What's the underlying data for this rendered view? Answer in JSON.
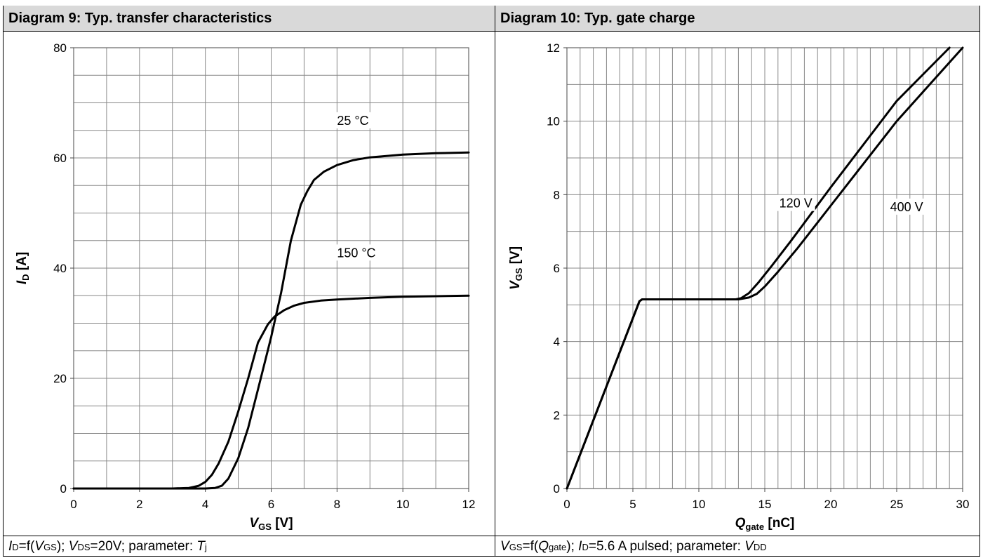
{
  "panels": [
    {
      "header": "Diagram 9: Typ. transfer characteristics",
      "footer": {
        "p1": "I",
        "p1s": "D",
        "p2": "=f(",
        "p3": "V",
        "p3s": "GS",
        "p4": "); ",
        "p5": "V",
        "p5s": "DS",
        "p6": "=20V; parameter: ",
        "p7": "T",
        "p7s": "j"
      }
    },
    {
      "header": "Diagram 10: Typ. gate charge",
      "footer": {
        "p1": "V",
        "p1s": "GS",
        "p2": "=f(",
        "p3": "Q",
        "p3s": "gate",
        "p4": "); ",
        "p5": "I",
        "p5s": "D",
        "p6": "=5.6 A pulsed; parameter: ",
        "p7": "V",
        "p7s": "DD"
      }
    }
  ],
  "chart_data": [
    {
      "type": "line",
      "xlim": [
        0,
        12
      ],
      "ylim": [
        0,
        80
      ],
      "xticks": [
        0,
        2,
        4,
        6,
        8,
        10,
        12
      ],
      "yticks": [
        0,
        20,
        40,
        60,
        80
      ],
      "x_minor_step": 1,
      "y_minor_step": 5,
      "grid": true,
      "xlabel": {
        "main": "V",
        "sub": "GS",
        "unit": " [V]"
      },
      "ylabel": {
        "main": "I",
        "sub": "D",
        "unit": " [A]"
      },
      "series": [
        {
          "name": "25 °C",
          "x": [
            0,
            3.5,
            4.0,
            4.3,
            4.5,
            4.7,
            5.0,
            5.3,
            5.6,
            6.0,
            6.3,
            6.6,
            6.9,
            7.1,
            7.3,
            7.6,
            8.0,
            8.5,
            9.0,
            10.0,
            11.0,
            12.0
          ],
          "y": [
            0,
            0,
            0,
            0.1,
            0.5,
            1.8,
            5.5,
            11,
            18,
            27.5,
            35.5,
            45,
            51.5,
            54,
            56,
            57.5,
            58.7,
            59.6,
            60.1,
            60.6,
            60.85,
            61
          ]
        },
        {
          "name": "150 °C",
          "x": [
            0,
            3.0,
            3.5,
            3.8,
            4.0,
            4.2,
            4.4,
            4.7,
            5.0,
            5.3,
            5.6,
            5.9,
            6.1,
            6.4,
            6.7,
            7.0,
            7.5,
            8.0,
            9.0,
            10.0,
            11.0,
            12.0
          ],
          "y": [
            0,
            0,
            0.1,
            0.5,
            1.2,
            2.5,
            4.5,
            8.5,
            14,
            20,
            26.5,
            29.8,
            31.2,
            32.4,
            33.2,
            33.7,
            34.1,
            34.3,
            34.6,
            34.8,
            34.9,
            35
          ]
        }
      ],
      "annotations": [
        {
          "text": "25 °C",
          "x": 8.0,
          "y": 66
        },
        {
          "text": "150 °C",
          "x": 8.0,
          "y": 42
        }
      ]
    },
    {
      "type": "line",
      "xlim": [
        0,
        30
      ],
      "ylim": [
        0,
        12
      ],
      "xticks": [
        0,
        5,
        10,
        15,
        20,
        25,
        30
      ],
      "yticks": [
        0,
        2,
        4,
        6,
        8,
        10,
        12
      ],
      "x_minor_step": 1,
      "y_minor_step": 1,
      "grid": true,
      "xlabel": {
        "main": "Q",
        "sub": "gate",
        "unit": " [nC]"
      },
      "ylabel": {
        "main": "V",
        "sub": "GS",
        "unit": " [V]"
      },
      "series": [
        {
          "name": "120 V",
          "x": [
            0,
            5.5,
            5.7,
            6.0,
            12.8,
            13.2,
            13.8,
            14.5,
            15.5,
            17.0,
            20.0,
            25.0,
            29.0
          ],
          "y": [
            0,
            5.1,
            5.15,
            5.15,
            5.15,
            5.18,
            5.32,
            5.6,
            6.05,
            6.75,
            8.2,
            10.55,
            12.0
          ]
        },
        {
          "name": "400 V",
          "x": [
            0,
            5.5,
            5.7,
            6.0,
            13.0,
            13.8,
            14.4,
            15.0,
            16.0,
            17.5,
            20.0,
            25.0,
            30.0
          ],
          "y": [
            0,
            5.1,
            5.15,
            5.15,
            5.15,
            5.2,
            5.3,
            5.5,
            5.9,
            6.55,
            7.7,
            10.0,
            12.0
          ]
        }
      ],
      "annotations": [
        {
          "text": "120 V",
          "x": 16.1,
          "y": 7.65
        },
        {
          "text": "400 V",
          "x": 24.5,
          "y": 7.55
        }
      ]
    }
  ]
}
